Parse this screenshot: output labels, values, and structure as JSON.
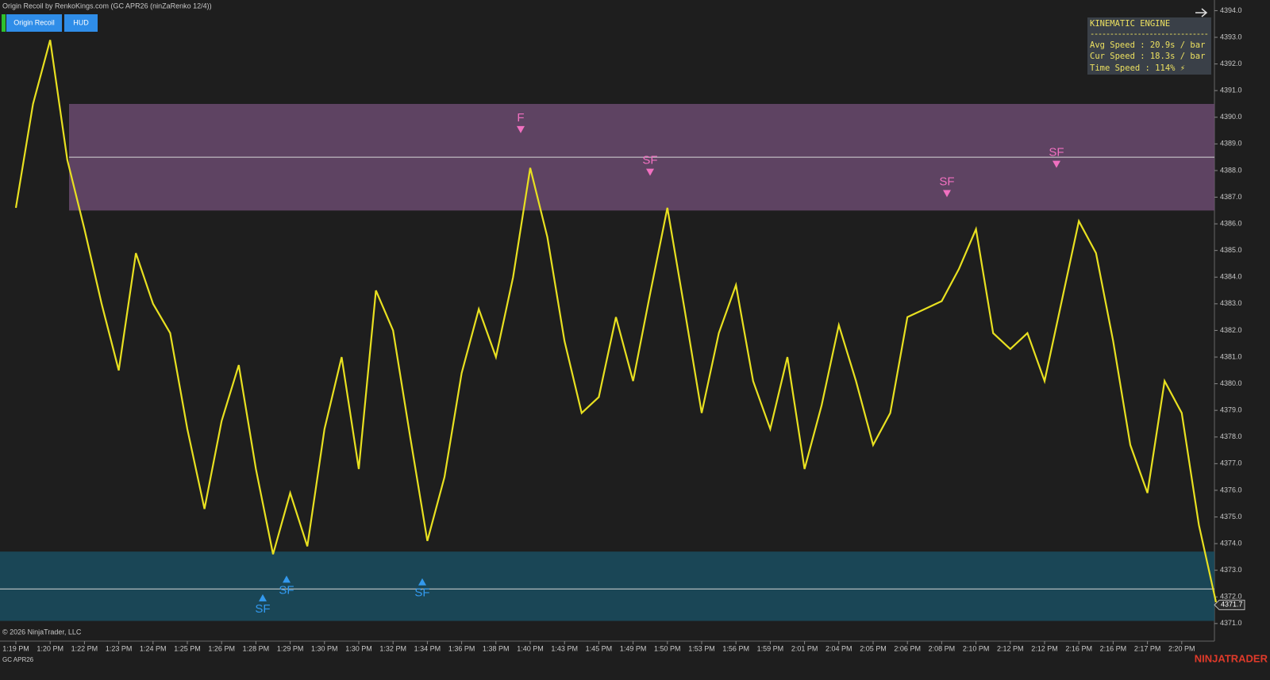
{
  "header": {
    "title": "Origin Recoil by RenkoKings.com (GC APR26 (ninZaRenko 12/4))",
    "buttons": [
      "Origin Recoil",
      "HUD"
    ]
  },
  "hud": {
    "title": "KINEMATIC ENGINE",
    "separator": "------------------------------",
    "lines": [
      "Avg Speed  : 20.9s / bar",
      "Cur Speed  : 18.3s / bar",
      "Time Speed : 114% ⚡"
    ]
  },
  "footer": {
    "copyright": "© 2026 NinjaTrader, LLC",
    "instrument": "GC APR26",
    "logo": "NINJATRADER"
  },
  "chart_data": {
    "type": "line",
    "color": "#e8e020",
    "categories": [
      "1:19 PM",
      null,
      "1:20 PM",
      null,
      "1:22 PM",
      null,
      "1:23 PM",
      null,
      "1:24 PM",
      null,
      "1:25 PM",
      null,
      "1:26 PM",
      null,
      "1:28 PM",
      null,
      "1:29 PM",
      null,
      "1:30 PM",
      null,
      "1:30 PM",
      null,
      "1:32 PM",
      null,
      "1:34 PM",
      null,
      "1:36 PM",
      null,
      "1:38 PM",
      null,
      "1:40 PM",
      null,
      "1:43 PM",
      null,
      "1:45 PM",
      null,
      "1:49 PM",
      null,
      "1:50 PM",
      null,
      "1:53 PM",
      null,
      "1:56 PM",
      null,
      "1:59 PM",
      null,
      "2:01 PM",
      null,
      "2:04 PM",
      null,
      "2:05 PM",
      null,
      "2:06 PM",
      null,
      "2:08 PM",
      null,
      "2:10 PM",
      null,
      "2:12 PM",
      null,
      "2:12 PM",
      null,
      "2:16 PM",
      null,
      "2:16 PM",
      null,
      "2:17 PM",
      null,
      "2:20 PM",
      null,
      null
    ],
    "values": [
      4386.6,
      4390.5,
      4392.9,
      4388.4,
      4385.8,
      4383,
      4380.5,
      4384.9,
      4383,
      4381.9,
      4378.3,
      4375.3,
      4378.6,
      4380.7,
      4376.8,
      4373.6,
      4375.9,
      4373.9,
      4378.3,
      4381,
      4376.8,
      4383.5,
      4382,
      4378,
      4374.1,
      4376.5,
      4380.4,
      4382.8,
      4381,
      4384,
      4388.1,
      4385.5,
      4381.6,
      4378.9,
      4379.5,
      4382.5,
      4380.1,
      4383.4,
      4386.6,
      4382.8,
      4378.9,
      4381.9,
      4383.7,
      4380.1,
      4378.3,
      4381,
      4376.8,
      4379.2,
      4382.2,
      4380.1,
      4377.7,
      4378.9,
      4382.5,
      4382.8,
      4383.1,
      4384.3,
      4385.8,
      4381.9,
      4381.3,
      4381.9,
      4380.1,
      4383.1,
      4386.1,
      4384.9,
      4381.6,
      4377.7,
      4375.9,
      4380.1,
      4378.9,
      4374.7,
      4371.8
    ],
    "ylim": [
      4370.4,
      4394.4
    ],
    "yticks": [
      {
        "value": 4371,
        "label": "4371.0"
      },
      {
        "value": 4372,
        "label": "4372.0"
      },
      {
        "value": 4373,
        "label": "4373.0"
      },
      {
        "value": 4374,
        "label": "4374.0"
      },
      {
        "value": 4375,
        "label": "4375.0"
      },
      {
        "value": 4376,
        "label": "4376.0"
      },
      {
        "value": 4377,
        "label": "4377.0"
      },
      {
        "value": 4378,
        "label": "4378.0"
      },
      {
        "value": 4379,
        "label": "4379.0"
      },
      {
        "value": 4380,
        "label": "4380.0"
      },
      {
        "value": 4381,
        "label": "4381.0"
      },
      {
        "value": 4382,
        "label": "4382.0"
      },
      {
        "value": 4383,
        "label": "4383.0"
      },
      {
        "value": 4384,
        "label": "4384.0"
      },
      {
        "value": 4385,
        "label": "4385.0"
      },
      {
        "value": 4386,
        "label": "4386.0"
      },
      {
        "value": 4387,
        "label": "4387.0"
      },
      {
        "value": 4388,
        "label": "4388.0"
      },
      {
        "value": 4389,
        "label": "4389.0"
      },
      {
        "value": 4390,
        "label": "4390.0"
      },
      {
        "value": 4391,
        "label": "4391.0"
      },
      {
        "value": 4392,
        "label": "4392.0"
      },
      {
        "value": 4393,
        "label": "4393.0"
      },
      {
        "value": 4394,
        "label": "4394.0"
      }
    ],
    "zones": [
      {
        "top": 4390.5,
        "bottom": 4386.5,
        "mid": 4388.5,
        "color": "#6a4a6e"
      },
      {
        "top": 4373.7,
        "bottom": 4371.1,
        "mid": 4372.3,
        "color": "#1a4d60"
      }
    ],
    "signals": [
      {
        "label": "F",
        "price": 4389.4,
        "direction": "down",
        "color": "#f070c0"
      },
      {
        "label": "SF",
        "price": 4387.8,
        "direction": "down",
        "color": "#f070c0"
      },
      {
        "label": "SF",
        "price": 4387.0,
        "direction": "down",
        "color": "#f070c0"
      },
      {
        "label": "SF",
        "price": 4388.1,
        "direction": "down",
        "color": "#f070c0"
      },
      {
        "label": "SF",
        "price": 4372.1,
        "direction": "up",
        "color": "#3399ee"
      },
      {
        "label": "SF",
        "price": 4372.8,
        "direction": "up",
        "color": "#3399ee"
      },
      {
        "label": "SF",
        "price": 4372.7,
        "direction": "up",
        "color": "#3399ee"
      }
    ],
    "last_price": 4371.7
  }
}
